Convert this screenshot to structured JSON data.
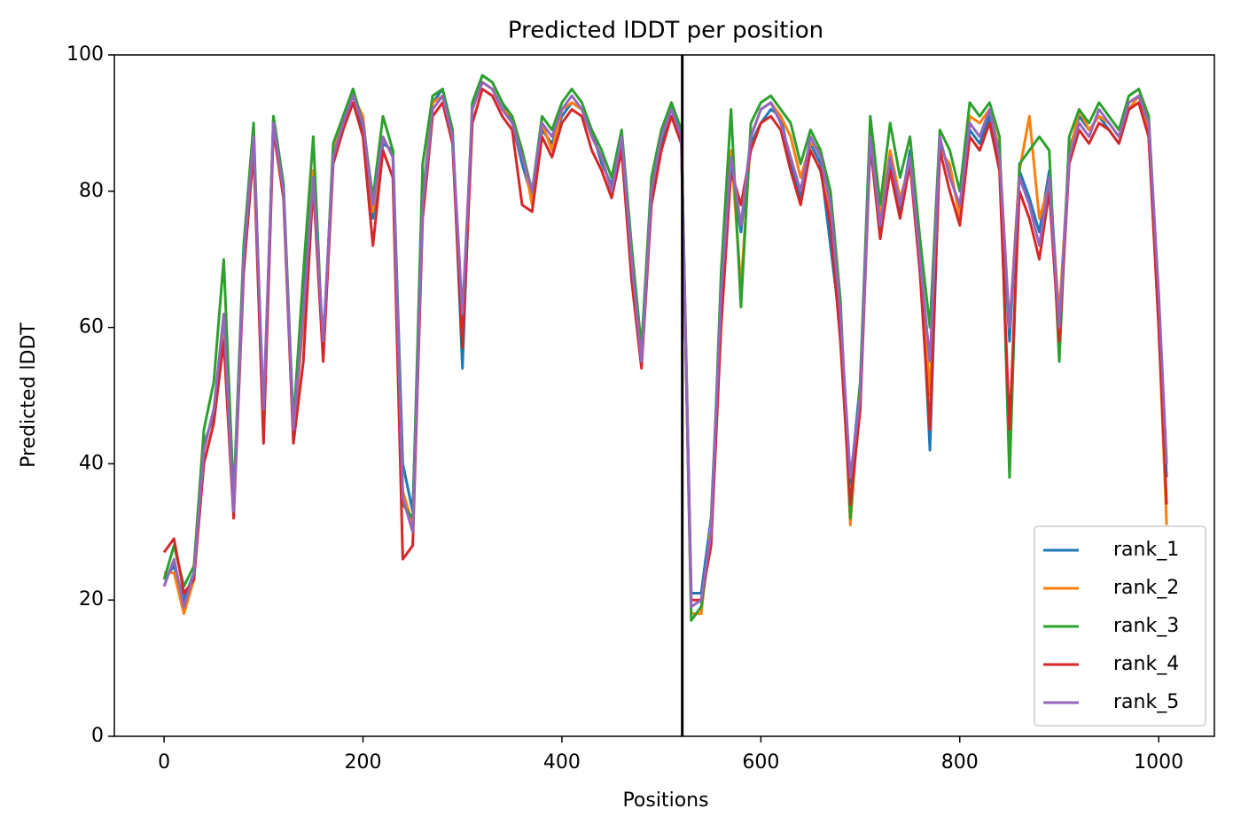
{
  "chart_data": {
    "type": "line",
    "title": "Predicted lDDT per position",
    "xlabel": "Positions",
    "ylabel": "Predicted lDDT",
    "x": [
      0,
      10,
      20,
      30,
      40,
      50,
      60,
      70,
      80,
      90,
      100,
      110,
      120,
      130,
      140,
      150,
      160,
      170,
      180,
      190,
      200,
      210,
      220,
      230,
      240,
      250,
      260,
      270,
      280,
      290,
      300,
      310,
      320,
      330,
      340,
      350,
      360,
      370,
      380,
      390,
      400,
      410,
      420,
      430,
      440,
      450,
      460,
      470,
      480,
      490,
      500,
      510,
      520,
      530,
      540,
      550,
      560,
      570,
      580,
      590,
      600,
      610,
      620,
      630,
      640,
      650,
      660,
      670,
      680,
      690,
      700,
      710,
      720,
      730,
      740,
      750,
      760,
      770,
      780,
      790,
      800,
      810,
      820,
      830,
      840,
      850,
      860,
      870,
      880,
      890,
      900,
      910,
      920,
      930,
      940,
      950,
      960,
      970,
      980,
      990,
      1000,
      1008
    ],
    "series": [
      {
        "name": "rank_1",
        "color": "#1f77b4",
        "values": [
          23,
          25,
          20,
          24,
          43,
          47,
          60,
          34,
          71,
          88,
          46,
          91,
          81,
          44,
          65,
          83,
          57,
          86,
          91,
          95,
          89,
          76,
          87,
          86,
          40,
          33,
          79,
          93,
          95,
          89,
          54,
          93,
          97,
          96,
          93,
          90,
          84,
          79,
          89,
          87,
          91,
          93,
          92,
          89,
          84,
          81,
          87,
          69,
          56,
          81,
          87,
          93,
          89,
          21,
          21,
          32,
          64,
          84,
          74,
          87,
          90,
          92,
          91,
          84,
          79,
          87,
          84,
          72,
          60,
          37,
          52,
          87,
          74,
          84,
          77,
          86,
          72,
          42,
          87,
          83,
          77,
          89,
          87,
          91,
          84,
          58,
          83,
          79,
          74,
          83,
          61,
          86,
          91,
          89,
          91,
          89,
          87,
          92,
          93,
          88,
          62,
          38
        ]
      },
      {
        "name": "rank_2",
        "color": "#ff7f0e",
        "values": [
          24,
          24,
          18,
          23,
          42,
          48,
          59,
          34,
          70,
          87,
          47,
          90,
          80,
          44,
          61,
          83,
          57,
          86,
          90,
          94,
          91,
          77,
          88,
          85,
          36,
          31,
          78,
          93,
          94,
          88,
          59,
          92,
          96,
          95,
          92,
          91,
          86,
          78,
          90,
          86,
          92,
          93,
          92,
          88,
          85,
          80,
          88,
          71,
          56,
          80,
          88,
          92,
          88,
          18,
          18,
          31,
          62,
          86,
          66,
          88,
          92,
          93,
          91,
          88,
          82,
          87,
          86,
          77,
          62,
          31,
          51,
          90,
          76,
          86,
          79,
          84,
          71,
          50,
          86,
          84,
          76,
          91,
          90,
          92,
          86,
          60,
          83,
          91,
          76,
          81,
          62,
          85,
          92,
          89,
          91,
          90,
          88,
          92,
          94,
          89,
          60,
          31
        ]
      },
      {
        "name": "rank_3",
        "color": "#2ca02c",
        "values": [
          23,
          28,
          22,
          25,
          45,
          52,
          70,
          35,
          72,
          90,
          45,
          91,
          81,
          46,
          68,
          88,
          56,
          87,
          91,
          95,
          90,
          79,
          91,
          86,
          34,
          32,
          84,
          94,
          95,
          89,
          58,
          93,
          97,
          96,
          93,
          91,
          86,
          80,
          91,
          89,
          93,
          95,
          93,
          89,
          86,
          82,
          89,
          72,
          57,
          82,
          89,
          93,
          89,
          17,
          19,
          29,
          68,
          92,
          63,
          90,
          93,
          94,
          92,
          90,
          84,
          89,
          86,
          80,
          64,
          32,
          52,
          91,
          78,
          90,
          82,
          88,
          73,
          60,
          89,
          86,
          80,
          93,
          91,
          93,
          88,
          38,
          84,
          86,
          88,
          86,
          55,
          88,
          92,
          90,
          93,
          91,
          89,
          94,
          95,
          91,
          64,
          40
        ]
      },
      {
        "name": "rank_4",
        "color": "#d62728",
        "values": [
          27,
          29,
          21,
          23,
          40,
          46,
          58,
          32,
          68,
          86,
          43,
          89,
          79,
          43,
          55,
          81,
          55,
          84,
          89,
          93,
          88,
          72,
          86,
          82,
          26,
          28,
          76,
          91,
          93,
          87,
          57,
          90,
          95,
          94,
          91,
          89,
          78,
          77,
          88,
          85,
          90,
          92,
          91,
          86,
          83,
          79,
          86,
          67,
          54,
          78,
          86,
          91,
          87,
          20,
          20,
          28,
          60,
          83,
          78,
          86,
          90,
          91,
          89,
          83,
          78,
          86,
          83,
          75,
          58,
          34,
          48,
          87,
          73,
          83,
          76,
          84,
          68,
          45,
          86,
          80,
          75,
          88,
          86,
          90,
          83,
          45,
          80,
          76,
          70,
          80,
          58,
          84,
          89,
          87,
          90,
          89,
          87,
          92,
          93,
          88,
          60,
          34
        ]
      },
      {
        "name": "rank_5",
        "color": "#9467bd",
        "values": [
          22,
          26,
          19,
          24,
          42,
          48,
          62,
          33,
          70,
          88,
          48,
          90,
          80,
          45,
          62,
          82,
          58,
          85,
          90,
          94,
          90,
          78,
          88,
          85,
          35,
          30,
          78,
          92,
          94,
          88,
          62,
          92,
          96,
          95,
          92,
          90,
          85,
          80,
          90,
          88,
          92,
          94,
          92,
          88,
          85,
          80,
          88,
          70,
          55,
          80,
          88,
          92,
          88,
          19,
          20,
          30,
          65,
          85,
          75,
          88,
          92,
          93,
          90,
          85,
          80,
          88,
          85,
          78,
          62,
          38,
          50,
          88,
          75,
          85,
          78,
          85,
          70,
          55,
          88,
          82,
          78,
          90,
          88,
          92,
          85,
          60,
          82,
          78,
          72,
          82,
          60,
          85,
          90,
          88,
          92,
          90,
          88,
          93,
          94,
          90,
          65,
          40
        ]
      }
    ],
    "vline": {
      "x": 521,
      "color": "#000000"
    },
    "xlim": [
      -50,
      1056
    ],
    "ylim": [
      0,
      100
    ],
    "xticks": [
      0,
      200,
      400,
      600,
      800,
      1000
    ],
    "yticks": [
      0,
      20,
      40,
      60,
      80,
      100
    ],
    "grid": false,
    "legend": "lower right"
  }
}
